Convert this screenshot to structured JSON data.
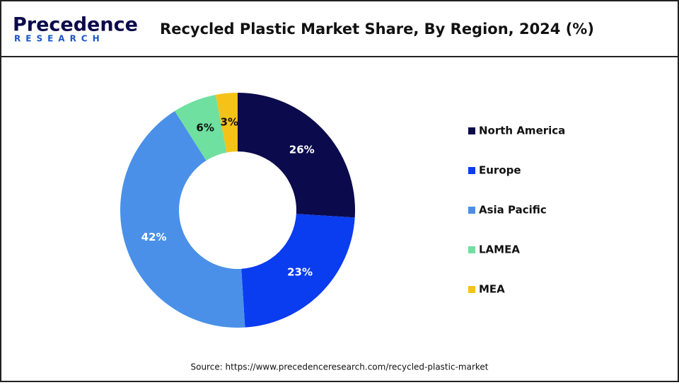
{
  "logo": {
    "name": "Precedence",
    "sub": "RESEARCH"
  },
  "chart_data": {
    "type": "donut",
    "title": "Recycled Plastic Market Share, By Region, 2024 (%)",
    "categories": [
      "North America",
      "Europe",
      "Asia Pacific",
      "LAMEA",
      "MEA"
    ],
    "values": [
      26,
      23,
      42,
      6,
      3
    ],
    "value_labels": [
      "26%",
      "23%",
      "42%",
      "6%",
      "3%"
    ],
    "colors": [
      "#0b0a4c",
      "#0a3cf0",
      "#4a90e8",
      "#6fe0a0",
      "#f5c219"
    ],
    "legend": "right",
    "source": "Source: https://www.precedenceresearch.com/recycled-plastic-market"
  }
}
